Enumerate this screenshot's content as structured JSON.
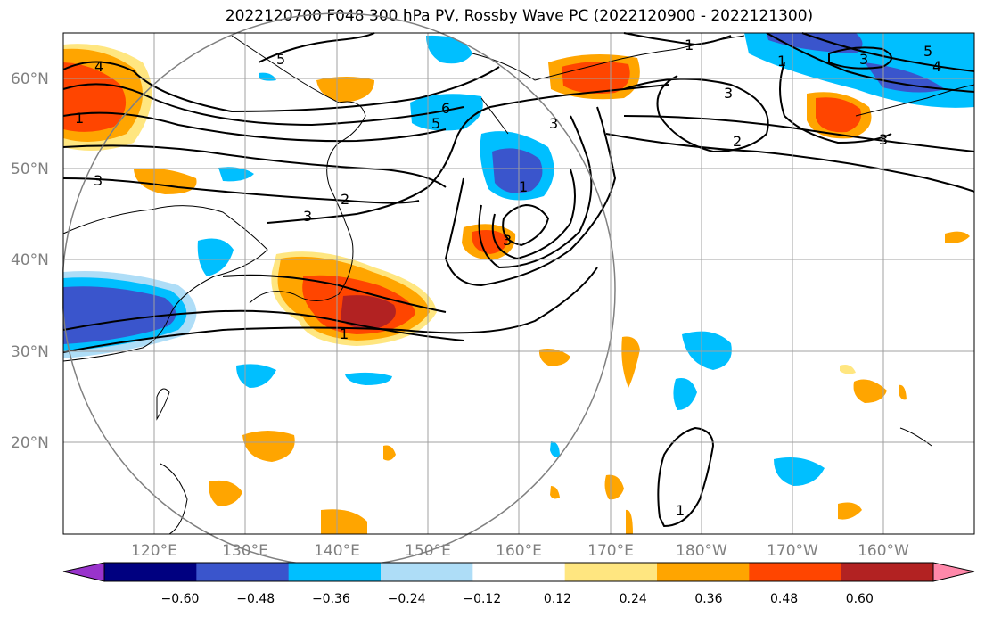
{
  "title": "2022120700 F048 300 hPa PV, Rossby Wave PC (2022120900 - 2022121300)",
  "map": {
    "lat_ticks": [
      "60°N",
      "50°N",
      "40°N",
      "30°N",
      "20°N"
    ],
    "lon_ticks": [
      "120°E",
      "130°E",
      "140°E",
      "150°E",
      "160°E",
      "170°E",
      "180°W",
      "170°W",
      "160°W"
    ],
    "contour_labels": [
      "4",
      "1",
      "5",
      "6",
      "5",
      "3",
      "1",
      "3",
      "2",
      "3",
      "3",
      "5",
      "4",
      "3",
      "1",
      "2",
      "3",
      "1",
      "1",
      "3",
      "1"
    ],
    "colors": {
      "purple": "#9933cc",
      "navy": "#000080",
      "blue": "#3a55cc",
      "deepsky": "#00bfff",
      "lightblue": "#aeddf7",
      "white": "#ffffff",
      "yellow": "#ffe680",
      "orange": "#ffa500",
      "orangered": "#ff4500",
      "darkred": "#b22222",
      "pink": "#ff88aa"
    }
  },
  "colorbar": {
    "labels": [
      "−0.60",
      "−0.48",
      "−0.36",
      "−0.24",
      "−0.12",
      "0.12",
      "0.24",
      "0.36",
      "0.48",
      "0.60"
    ],
    "bins": [
      "#000080",
      "#3a55cc",
      "#00bfff",
      "#aeddf7",
      "#ffffff",
      "#ffe680",
      "#ffa500",
      "#ff4500",
      "#b22222"
    ],
    "under_color": "#9933cc",
    "over_color": "#ff88aa"
  }
}
